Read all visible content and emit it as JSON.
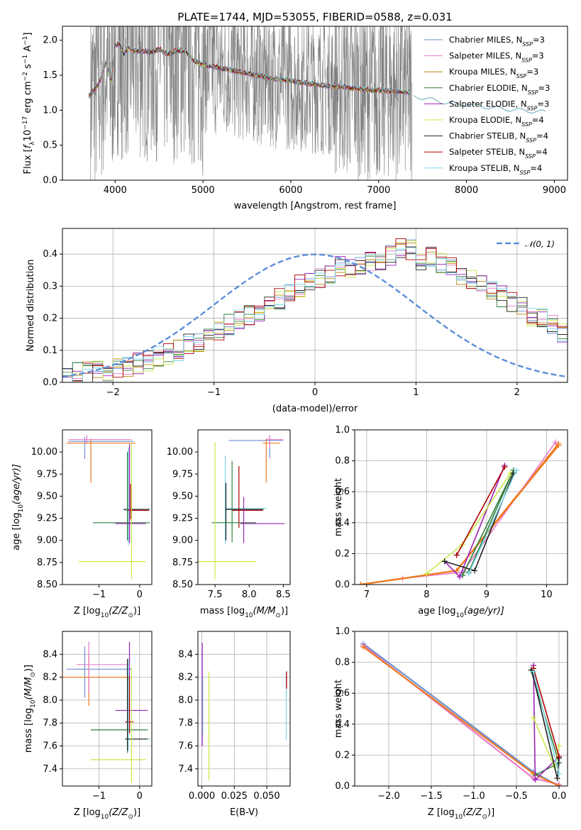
{
  "colors": {
    "Chabrier MILES": "#6a8fd1",
    "Salpeter MILES": "#e87bc7",
    "Kroupa MILES": "#b8860b",
    "Chabrier ELODIE": "#2f7d3a",
    "Salpeter ELODIE": "#9b21b6",
    "Kroupa ELODIE": "#c9e84a",
    "Chabrier STELIB": "#222222",
    "Salpeter STELIB": "#b00000",
    "Kroupa STELIB": "#7fd7e8",
    "observed": "#808080",
    "normal": "#5b8fd9",
    "orange": "#f07a20"
  },
  "chart_data": [
    {
      "id": "spectrum",
      "type": "line",
      "title": "PLATE=1744, MJD=53055, FIBERID=0588, z=0.031",
      "xlabel": "wavelength [Angstrom, rest frame]",
      "ylabel_parts": [
        "Flux [",
        "f",
        "λ",
        "10",
        "−17",
        " erg cm",
        "−2",
        " s",
        "−1",
        " A",
        "−1",
        "]"
      ],
      "xlim": [
        3400,
        9150
      ],
      "ylim": [
        0,
        2.2
      ],
      "xticks": [
        4000,
        5000,
        6000,
        7000,
        8000,
        9000
      ],
      "yticks": [
        0.0,
        0.5,
        1.0,
        1.5,
        2.0
      ],
      "legend_position": "upper right",
      "series": [
        {
          "name": "Chabrier MILES",
          "nssp": "3"
        },
        {
          "name": "Salpeter MILES",
          "nssp": "3"
        },
        {
          "name": "Kroupa MILES",
          "nssp": "3"
        },
        {
          "name": "Chabrier ELODIE",
          "nssp": "3"
        },
        {
          "name": "Salpeter ELODIE",
          "nssp": "3"
        },
        {
          "name": "Kroupa ELODIE",
          "nssp": "4"
        },
        {
          "name": "Chabrier STELIB",
          "nssp": "4"
        },
        {
          "name": "Salpeter STELIB",
          "nssp": "4"
        },
        {
          "name": "Kroupa STELIB",
          "nssp": "4"
        }
      ],
      "model_curve": {
        "x": [
          3700,
          3800,
          3850,
          3900,
          3950,
          4000,
          4050,
          4100,
          4150,
          4200,
          4300,
          4400,
          4500,
          4600,
          4700,
          4800,
          4900,
          5000,
          5200,
          5400,
          5600,
          5800,
          6000,
          6200,
          6400,
          6600,
          6800,
          7000,
          7200,
          7350
        ],
        "y": [
          1.2,
          1.35,
          1.5,
          1.7,
          1.4,
          1.92,
          1.95,
          1.8,
          1.9,
          1.85,
          1.85,
          1.83,
          1.87,
          1.8,
          1.85,
          1.85,
          1.7,
          1.65,
          1.6,
          1.55,
          1.5,
          1.45,
          1.42,
          1.38,
          1.35,
          1.33,
          1.3,
          1.28,
          1.27,
          1.25
        ]
      },
      "tail_curve": {
        "x": [
          7400,
          7600,
          7800,
          8000,
          8200,
          8400,
          8600,
          8800,
          8900
        ],
        "y": [
          1.2,
          1.15,
          1.1,
          1.08,
          1.05,
          1.02,
          1.0,
          0.98,
          0.97
        ]
      }
    },
    {
      "id": "residuals",
      "type": "line",
      "xlabel": "(data-model)/error",
      "ylabel": "Normed distribution",
      "xlim": [
        -2.5,
        2.5
      ],
      "ylim": [
        0,
        0.48
      ],
      "xticks": [
        -2,
        -1,
        0,
        1,
        2
      ],
      "yticks": [
        0.0,
        0.1,
        0.2,
        0.3,
        0.4
      ],
      "legend": [
        "𝒩(0, 1)"
      ],
      "legend_position": "upper right",
      "bin_width": 0.1,
      "bin_start": -2.5,
      "histogram": [
        0.02,
        0.03,
        0.03,
        0.04,
        0.03,
        0.05,
        0.05,
        0.06,
        0.07,
        0.08,
        0.09,
        0.1,
        0.12,
        0.13,
        0.15,
        0.16,
        0.18,
        0.2,
        0.21,
        0.22,
        0.24,
        0.26,
        0.28,
        0.3,
        0.31,
        0.32,
        0.34,
        0.36,
        0.35,
        0.37,
        0.38,
        0.36,
        0.4,
        0.42,
        0.41,
        0.38,
        0.39,
        0.37,
        0.36,
        0.34,
        0.32,
        0.3,
        0.29,
        0.27,
        0.25,
        0.23,
        0.21,
        0.2,
        0.18,
        0.16
      ]
    },
    {
      "id": "age-vs-Z",
      "type": "scatter",
      "xlabel_parts": [
        "Z [log",
        "10",
        "(Z/Z",
        "⊙",
        ")]"
      ],
      "ylabel_parts": [
        "age  [log",
        "10",
        "(age/yr)]"
      ],
      "xlim": [
        -1.9,
        0.3
      ],
      "ylim": [
        8.5,
        10.25
      ],
      "xticks": [
        -1,
        0
      ],
      "yticks": [
        8.5,
        8.75,
        9.0,
        9.25,
        9.5,
        9.75,
        10.0
      ]
    },
    {
      "id": "age-vs-mass",
      "type": "scatter",
      "xlabel_parts": [
        "mass [log",
        "10",
        "(M/M",
        "⊙",
        ")]"
      ],
      "xlim": [
        7.25,
        8.6
      ],
      "ylim": [
        8.5,
        10.25
      ],
      "xticks": [
        7.5,
        8.0,
        8.5
      ],
      "yticks": [
        8.5,
        8.75,
        9.0,
        9.25,
        9.5,
        9.75,
        10.0
      ]
    },
    {
      "id": "weight-vs-age",
      "type": "line",
      "xlabel_parts": [
        "age  [log",
        "10",
        "(age/yr)]"
      ],
      "ylabel": "mass weight",
      "xlim": [
        6.8,
        10.35
      ],
      "ylim": [
        0,
        1.0
      ],
      "xticks": [
        7,
        8,
        9,
        10
      ],
      "yticks": [
        0.0,
        0.2,
        0.4,
        0.6,
        0.8,
        1.0
      ]
    },
    {
      "id": "mass-vs-Z",
      "type": "scatter",
      "xlabel_parts": [
        "Z [log",
        "10",
        "(Z/Z",
        "⊙",
        ")]"
      ],
      "ylabel_parts": [
        "mass [log",
        "10",
        "(M/M",
        "⊙",
        ")]"
      ],
      "xlim": [
        -1.9,
        0.3
      ],
      "ylim": [
        7.25,
        8.6
      ],
      "xticks": [
        -1,
        0
      ],
      "yticks": [
        7.4,
        7.6,
        7.8,
        8.0,
        8.2,
        8.4
      ]
    },
    {
      "id": "mass-vs-ebv",
      "type": "scatter",
      "xlabel": "E(B-V)",
      "xlim": [
        -0.003,
        0.068
      ],
      "ylim": [
        7.25,
        8.6
      ],
      "xticks": [
        0.0,
        0.025,
        0.05
      ],
      "yticks": [
        7.4,
        7.6,
        7.8,
        8.0,
        8.2,
        8.4
      ]
    },
    {
      "id": "weight-vs-Z",
      "type": "line",
      "xlabel_parts": [
        "Z [log",
        "10",
        "(Z/Z",
        "⊙",
        ")]"
      ],
      "ylabel": "mass weight",
      "xlim": [
        -2.4,
        0.1
      ],
      "ylim": [
        0,
        1.0
      ],
      "xticks": [
        -2.0,
        -1.5,
        -1.0,
        -0.5,
        0.0
      ],
      "yticks": [
        0.0,
        0.2,
        0.4,
        0.6,
        0.8,
        1.0
      ]
    }
  ]
}
